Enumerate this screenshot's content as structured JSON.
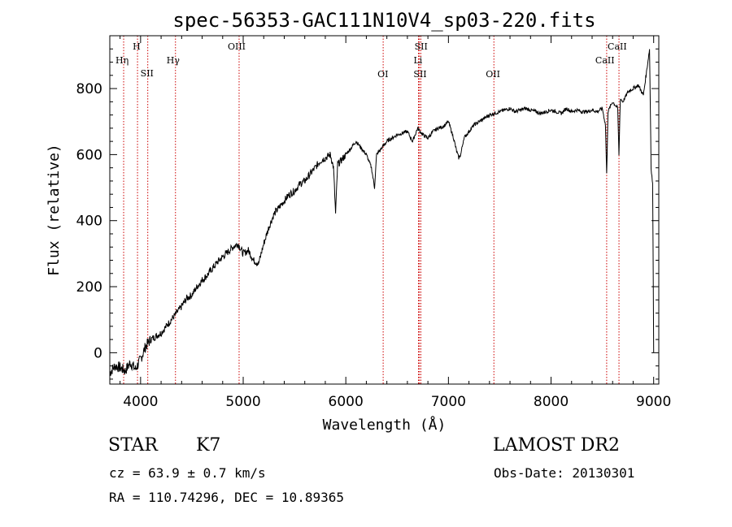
{
  "chart_data": {
    "type": "line",
    "title": "spec-56353-GAC111N10V4_sp03-220.fits",
    "xlabel": "Wavelength (Å)",
    "ylabel": "Flux (relative)",
    "xlim": [
      3700,
      9050
    ],
    "ylim": [
      -95,
      960
    ],
    "x_ticks": [
      4000,
      5000,
      6000,
      7000,
      8000,
      9000
    ],
    "y_ticks": [
      0,
      200,
      400,
      600,
      800
    ],
    "grid": false,
    "series": [
      {
        "x": [
          3700,
          3750,
          3800,
          3850,
          3900,
          3950,
          4000,
          4050,
          4100,
          4150,
          4200,
          4250,
          4300,
          4350,
          4400,
          4450,
          4500,
          4550,
          4600,
          4650,
          4700,
          4750,
          4800,
          4850,
          4900,
          4950,
          5000,
          5050,
          5100,
          5150,
          5200,
          5250,
          5300,
          5350,
          5400,
          5450,
          5500,
          5550,
          5600,
          5650,
          5700,
          5750,
          5800,
          5850,
          5880,
          5900,
          5920,
          5950,
          6000,
          6050,
          6100,
          6150,
          6200,
          6250,
          6280,
          6300,
          6350,
          6400,
          6450,
          6500,
          6550,
          6600,
          6650,
          6700,
          6750,
          6800,
          6850,
          6900,
          6950,
          7000,
          7050,
          7080,
          7100,
          7120,
          7150,
          7200,
          7250,
          7300,
          7350,
          7400,
          7450,
          7500,
          7550,
          7600,
          7650,
          7700,
          7750,
          7800,
          7850,
          7900,
          7950,
          8000,
          8050,
          8100,
          8150,
          8200,
          8250,
          8300,
          8350,
          8400,
          8450,
          8500,
          8530,
          8542,
          8555,
          8600,
          8650,
          8662,
          8675,
          8700,
          8750,
          8800,
          8850,
          8900,
          8930,
          8960,
          8975,
          8990,
          9000
        ],
        "y": [
          -60,
          -40,
          -45,
          -55,
          -30,
          -50,
          -20,
          20,
          40,
          50,
          60,
          80,
          100,
          120,
          140,
          165,
          175,
          200,
          220,
          235,
          255,
          275,
          290,
          305,
          320,
          330,
          300,
          310,
          280,
          270,
          330,
          380,
          420,
          440,
          460,
          480,
          490,
          510,
          520,
          540,
          560,
          580,
          590,
          600,
          560,
          420,
          570,
          580,
          600,
          620,
          640,
          620,
          600,
          560,
          500,
          600,
          620,
          640,
          650,
          660,
          665,
          670,
          640,
          680,
          660,
          650,
          670,
          680,
          685,
          700,
          650,
          610,
          590,
          600,
          650,
          670,
          690,
          700,
          710,
          720,
          725,
          730,
          735,
          740,
          730,
          735,
          740,
          735,
          730,
          725,
          730,
          735,
          730,
          725,
          740,
          730,
          735,
          730,
          730,
          735,
          730,
          740,
          690,
          540,
          730,
          760,
          740,
          600,
          770,
          760,
          790,
          800,
          810,
          780,
          850,
          920,
          560,
          510,
          0
        ],
        "color": "#000000"
      }
    ],
    "spectral_lines": [
      {
        "label": "Hη",
        "x": 3835
      },
      {
        "label": "H",
        "x": 3970
      },
      {
        "label": "SII",
        "x": 4070
      },
      {
        "label": "Hγ",
        "x": 4340
      },
      {
        "label": "OIII",
        "x": 4960
      },
      {
        "label": "OI",
        "x": 6364
      },
      {
        "label": "SII",
        "x": 6717
      },
      {
        "label": "Li",
        "x": 6708
      },
      {
        "label": "SII",
        "x": 6731
      },
      {
        "label": "OII",
        "x": 7443
      },
      {
        "label": "CaII",
        "x": 8542
      },
      {
        "label": "CaII",
        "x": 8662
      }
    ],
    "line_color": "#cc0000"
  },
  "info": {
    "object_class": "STAR",
    "subclass": "K7",
    "survey": "LAMOST DR2",
    "cz": "cz = 63.9 ± 0.7 km/s",
    "obs_date": "Obs-Date: 20130301",
    "radec": "RA = 110.74296, DEC =  10.89365"
  }
}
